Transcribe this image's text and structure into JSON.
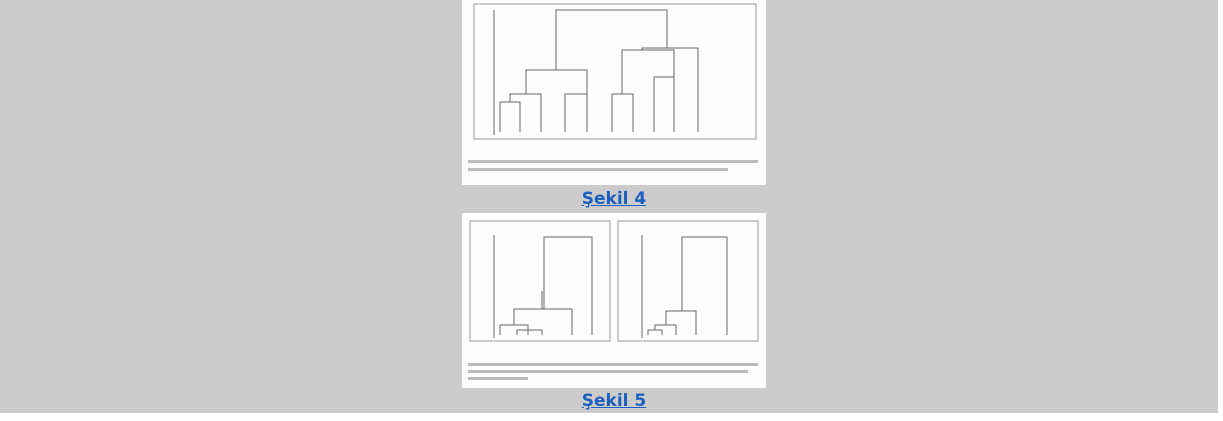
{
  "links": [
    "Şekil 4",
    "Şekil 5"
  ]
}
